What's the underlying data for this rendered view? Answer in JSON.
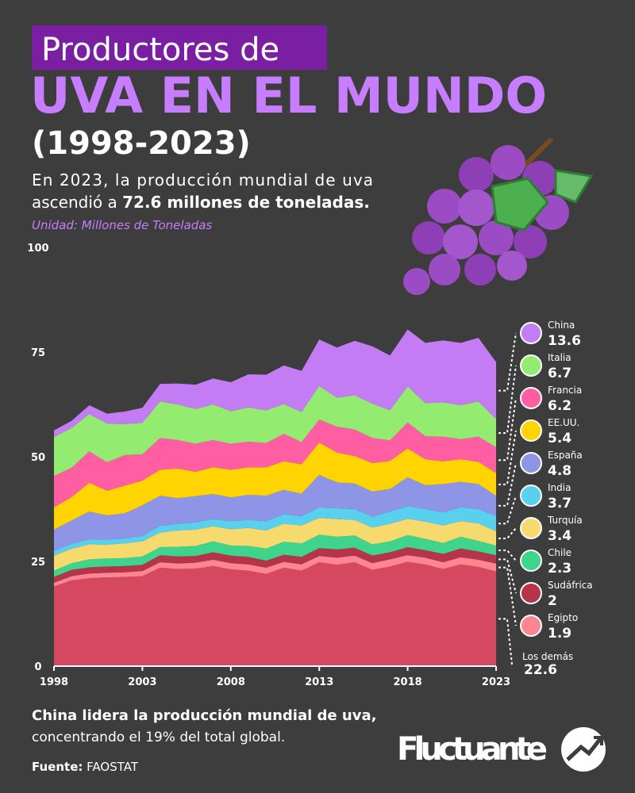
{
  "header": {
    "title_box": "Productores de",
    "title": "UVA EN EL MUNDO",
    "period": "(1998-2023)",
    "subtitle_line1": "En 2023, la producción mundial de uva",
    "subtitle_line2": "ascendió a",
    "subtitle_highlight": "72.6 millones de toneladas.",
    "unit": "Unidad: Millones de Toneladas"
  },
  "chart_data": {
    "type": "stacked-area",
    "x": [
      1998,
      1999,
      2000,
      2001,
      2002,
      2003,
      2004,
      2005,
      2006,
      2007,
      2008,
      2009,
      2010,
      2011,
      2012,
      2013,
      2014,
      2015,
      2016,
      2017,
      2018,
      2019,
      2020,
      2021,
      2022,
      2023
    ],
    "xlim": [
      1998,
      2023
    ],
    "xticks": [
      1998,
      2003,
      2008,
      2013,
      2018,
      2023
    ],
    "ylim": [
      0,
      100
    ],
    "yticks": [
      0,
      25,
      50,
      75,
      100
    ],
    "series": [
      {
        "name": "Los demás",
        "color": "#d6485f",
        "values": [
          19.0,
          20.5,
          21.0,
          21.2,
          21.3,
          21.5,
          23.5,
          23.2,
          23.3,
          23.9,
          23.1,
          22.8,
          22.0,
          23.5,
          22.8,
          24.8,
          24.2,
          24.8,
          23.0,
          23.8,
          24.9,
          24.3,
          23.2,
          24.3,
          23.7,
          22.6
        ]
      },
      {
        "name": "Egipto",
        "color": "#ff8591",
        "values": [
          0.9,
          1.0,
          1.1,
          1.1,
          1.1,
          1.2,
          1.3,
          1.3,
          1.4,
          1.5,
          1.5,
          1.5,
          1.5,
          1.4,
          1.5,
          1.5,
          1.7,
          1.6,
          1.6,
          1.7,
          1.6,
          1.6,
          1.6,
          1.7,
          1.7,
          1.9
        ]
      },
      {
        "name": "Sudáfrica",
        "color": "#b5344a",
        "values": [
          1.4,
          1.5,
          1.5,
          1.5,
          1.5,
          1.5,
          1.7,
          1.7,
          1.6,
          1.8,
          1.8,
          1.8,
          1.7,
          1.7,
          1.8,
          1.9,
          2.0,
          1.9,
          1.8,
          1.7,
          1.9,
          1.8,
          2.0,
          2.1,
          2.0,
          2.0
        ]
      },
      {
        "name": "Chile",
        "color": "#3fd48c",
        "values": [
          1.5,
          1.6,
          1.9,
          1.9,
          1.9,
          2.0,
          1.9,
          2.3,
          2.4,
          2.6,
          2.4,
          2.6,
          2.9,
          3.1,
          3.2,
          3.2,
          3.0,
          2.9,
          2.7,
          2.6,
          2.9,
          2.7,
          2.6,
          2.8,
          2.5,
          2.3
        ]
      },
      {
        "name": "Turquía",
        "color": "#f6da6e",
        "values": [
          3.6,
          3.4,
          3.6,
          3.3,
          3.5,
          3.6,
          3.5,
          3.9,
          3.9,
          3.6,
          3.9,
          4.3,
          4.3,
          4.3,
          4.3,
          4.0,
          4.2,
          3.7,
          4.0,
          4.2,
          3.9,
          4.1,
          4.2,
          3.7,
          4.2,
          3.4
        ]
      },
      {
        "name": "India",
        "color": "#58d0ee",
        "values": [
          1.1,
          1.2,
          1.2,
          1.2,
          1.2,
          1.3,
          1.6,
          1.6,
          1.7,
          1.7,
          1.9,
          1.9,
          2.2,
          2.3,
          2.2,
          2.5,
          2.6,
          2.6,
          2.6,
          2.9,
          3.0,
          3.0,
          3.1,
          3.3,
          3.4,
          3.7
        ]
      },
      {
        "name": "España",
        "color": "#8e94e6",
        "values": [
          5.1,
          5.6,
          6.6,
          5.8,
          6.0,
          7.3,
          7.2,
          6.1,
          6.3,
          6.0,
          5.7,
          6.0,
          6.1,
          5.8,
          5.4,
          7.8,
          6.2,
          6.1,
          6.0,
          5.4,
          6.9,
          5.7,
          6.8,
          6.1,
          6.0,
          4.8
        ]
      },
      {
        "name": "EE.UU.",
        "color": "#ffd400",
        "values": [
          5.3,
          5.6,
          6.9,
          5.9,
          6.6,
          5.9,
          6.2,
          7.1,
          5.8,
          6.4,
          6.6,
          6.6,
          6.8,
          6.8,
          7.0,
          7.7,
          7.1,
          6.6,
          6.8,
          6.7,
          6.9,
          6.2,
          5.4,
          5.4,
          5.3,
          5.4
        ]
      },
      {
        "name": "Francia",
        "color": "#ff5fa2",
        "values": [
          7.5,
          7.0,
          7.5,
          6.8,
          7.3,
          6.3,
          7.6,
          6.8,
          6.7,
          6.5,
          6.2,
          6.1,
          5.8,
          6.6,
          5.3,
          5.5,
          6.2,
          6.3,
          6.0,
          4.9,
          6.2,
          5.5,
          5.9,
          4.8,
          6.0,
          6.2
        ]
      },
      {
        "name": "Italia",
        "color": "#93ec70",
        "values": [
          9.3,
          9.5,
          8.9,
          9.2,
          7.4,
          7.5,
          8.7,
          8.5,
          8.3,
          8.5,
          7.8,
          8.2,
          7.8,
          7.1,
          7.2,
          8.0,
          6.9,
          8.2,
          8.2,
          7.2,
          8.6,
          7.9,
          8.2,
          8.1,
          8.4,
          6.7
        ]
      },
      {
        "name": "China",
        "color": "#c47cf5",
        "values": [
          1.6,
          1.7,
          2.1,
          2.4,
          3.0,
          3.6,
          4.2,
          5.0,
          5.8,
          6.2,
          6.9,
          7.9,
          8.5,
          9.2,
          9.8,
          11.1,
          12.0,
          13.0,
          13.7,
          13.1,
          13.6,
          14.4,
          14.8,
          14.9,
          15.2,
          13.6
        ]
      }
    ]
  },
  "footer": {
    "line1": "China lidera la producción mundial de uva,",
    "line2": "concentrando el 19% del total global.",
    "source_label": "Fuente:",
    "source": "FAOSTAT",
    "brand": "Fluctuante"
  }
}
